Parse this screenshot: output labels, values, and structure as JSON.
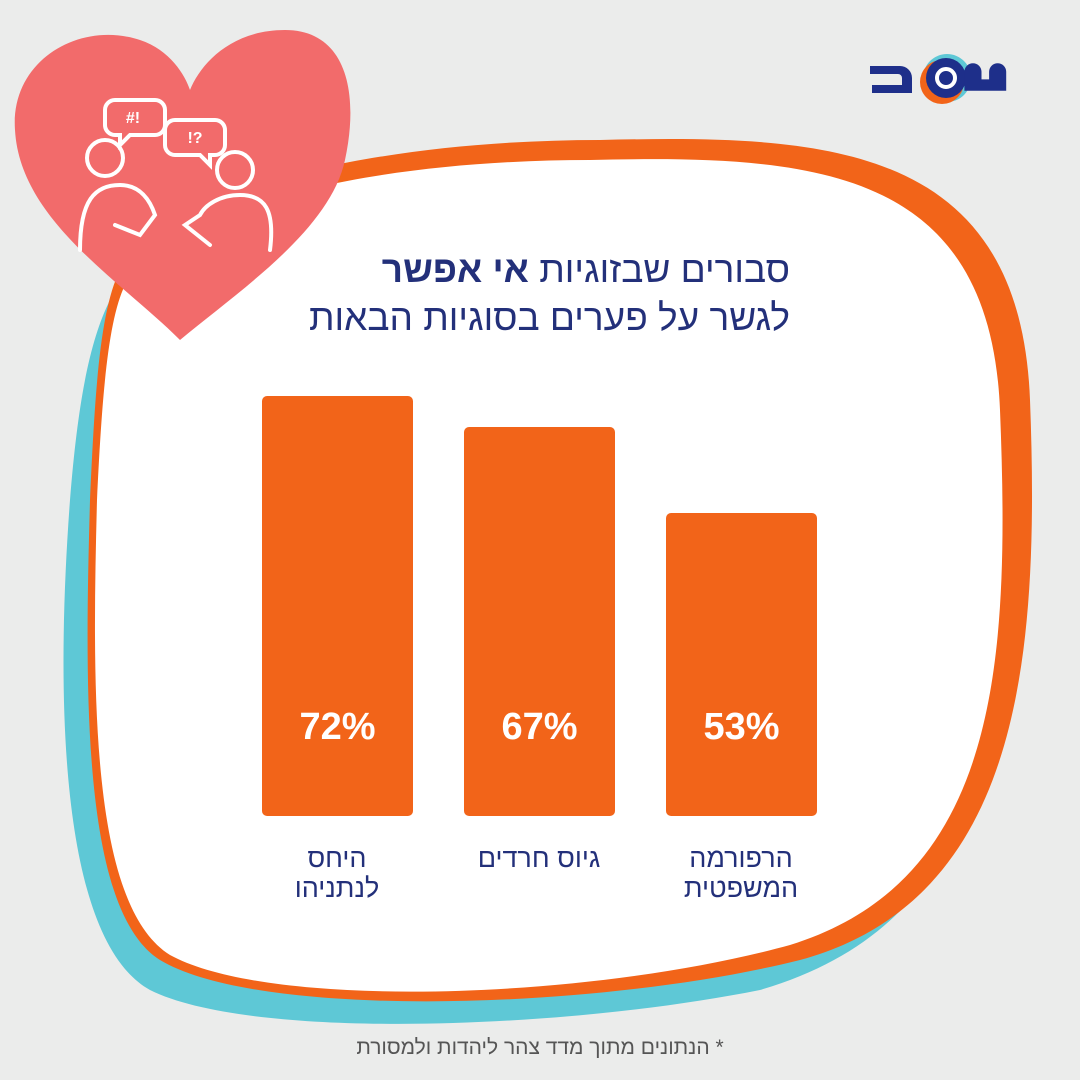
{
  "title": {
    "line1_regular": "סבורים שבזוגיות",
    "line1_bold": "אי אפשר",
    "line2": "לגשר על פערים בסוגיות הבאות"
  },
  "logo_text": "משב",
  "footnote": "* הנתונים מתוך מדד צהר ליהדות ולמסורת",
  "colors": {
    "bar": "#f26419",
    "text": "#23307a",
    "accent_teal": "#5ec8d6",
    "heart": "#f26b6b"
  },
  "chart_data": {
    "type": "bar",
    "categories": [
      "היחס לנתניהו",
      "גיוס חרדים",
      "הרפורמה המשפטית"
    ],
    "category_lines": [
      [
        "היחס",
        "לנתניהו"
      ],
      [
        "גיוס חרדים"
      ],
      [
        "הרפורמה",
        "המשפטית"
      ]
    ],
    "values": [
      72,
      67,
      53
    ],
    "value_labels": [
      "72%",
      "67%",
      "53%"
    ],
    "unit": "%",
    "ylim": [
      0,
      72
    ],
    "grid": false
  }
}
